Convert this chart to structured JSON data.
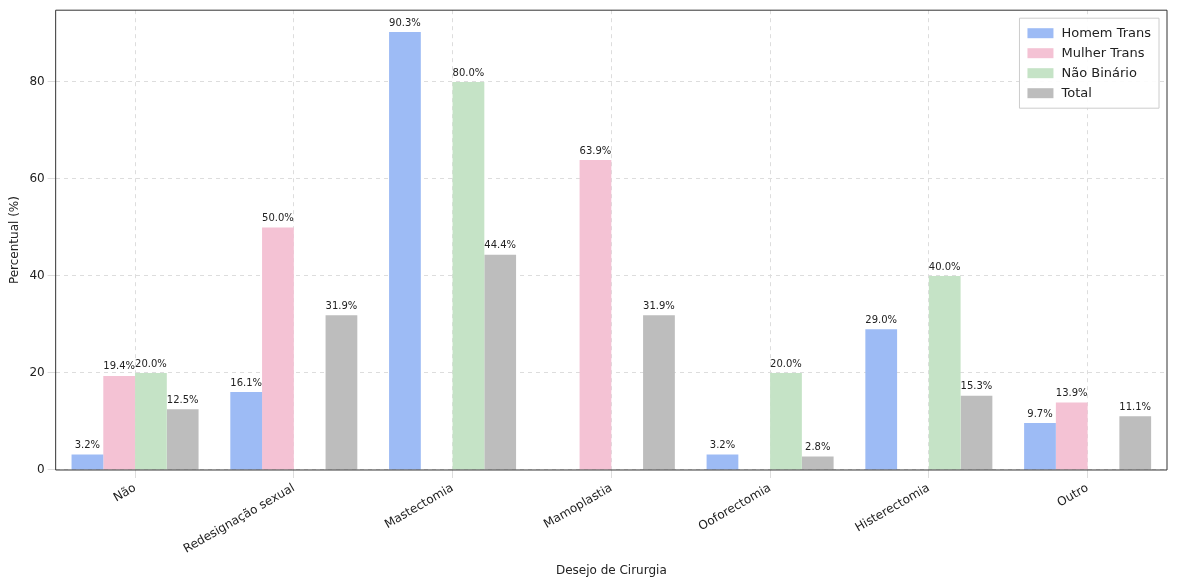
{
  "chart_data": {
    "type": "bar",
    "xlabel": "Desejo de Cirurgia",
    "ylabel": "Percentual (%)",
    "categories": [
      "Não",
      "Redesignação sexual",
      "Mastectomia",
      "Mamoplastia",
      "Ooforectomia",
      "Histerectomia",
      "Outro"
    ],
    "series": [
      {
        "name": "Homem Trans",
        "color": "#9dbbf5",
        "values": [
          3.2,
          16.1,
          90.3,
          0,
          3.2,
          29.0,
          9.7
        ],
        "value_labels": [
          "3.2%",
          "16.1%",
          "90.3%",
          null,
          "3.2%",
          "29.0%",
          "9.7%"
        ]
      },
      {
        "name": "Mulher Trans",
        "color": "#f4c2d4",
        "values": [
          19.4,
          50.0,
          0,
          63.9,
          0,
          0,
          13.9
        ],
        "value_labels": [
          "19.4%",
          "50.0%",
          null,
          "63.9%",
          null,
          null,
          "13.9%"
        ]
      },
      {
        "name": "Não Binário",
        "color": "#c5e3c6",
        "values": [
          20.0,
          0,
          80.0,
          0,
          20.0,
          40.0,
          0
        ],
        "value_labels": [
          "20.0%",
          null,
          "80.0%",
          null,
          "20.0%",
          "40.0%",
          null
        ]
      },
      {
        "name": "Total",
        "color": "#bdbdbd",
        "values": [
          12.5,
          31.9,
          44.4,
          31.9,
          2.8,
          15.3,
          11.1
        ],
        "value_labels": [
          "12.5%",
          "31.9%",
          "44.4%",
          "31.9%",
          "2.8%",
          "15.3%",
          "11.1%"
        ]
      }
    ],
    "ylim": [
      0,
      94.8
    ],
    "yticks": [
      0,
      20,
      40,
      60,
      80
    ],
    "grid": true,
    "legend": "top right"
  }
}
